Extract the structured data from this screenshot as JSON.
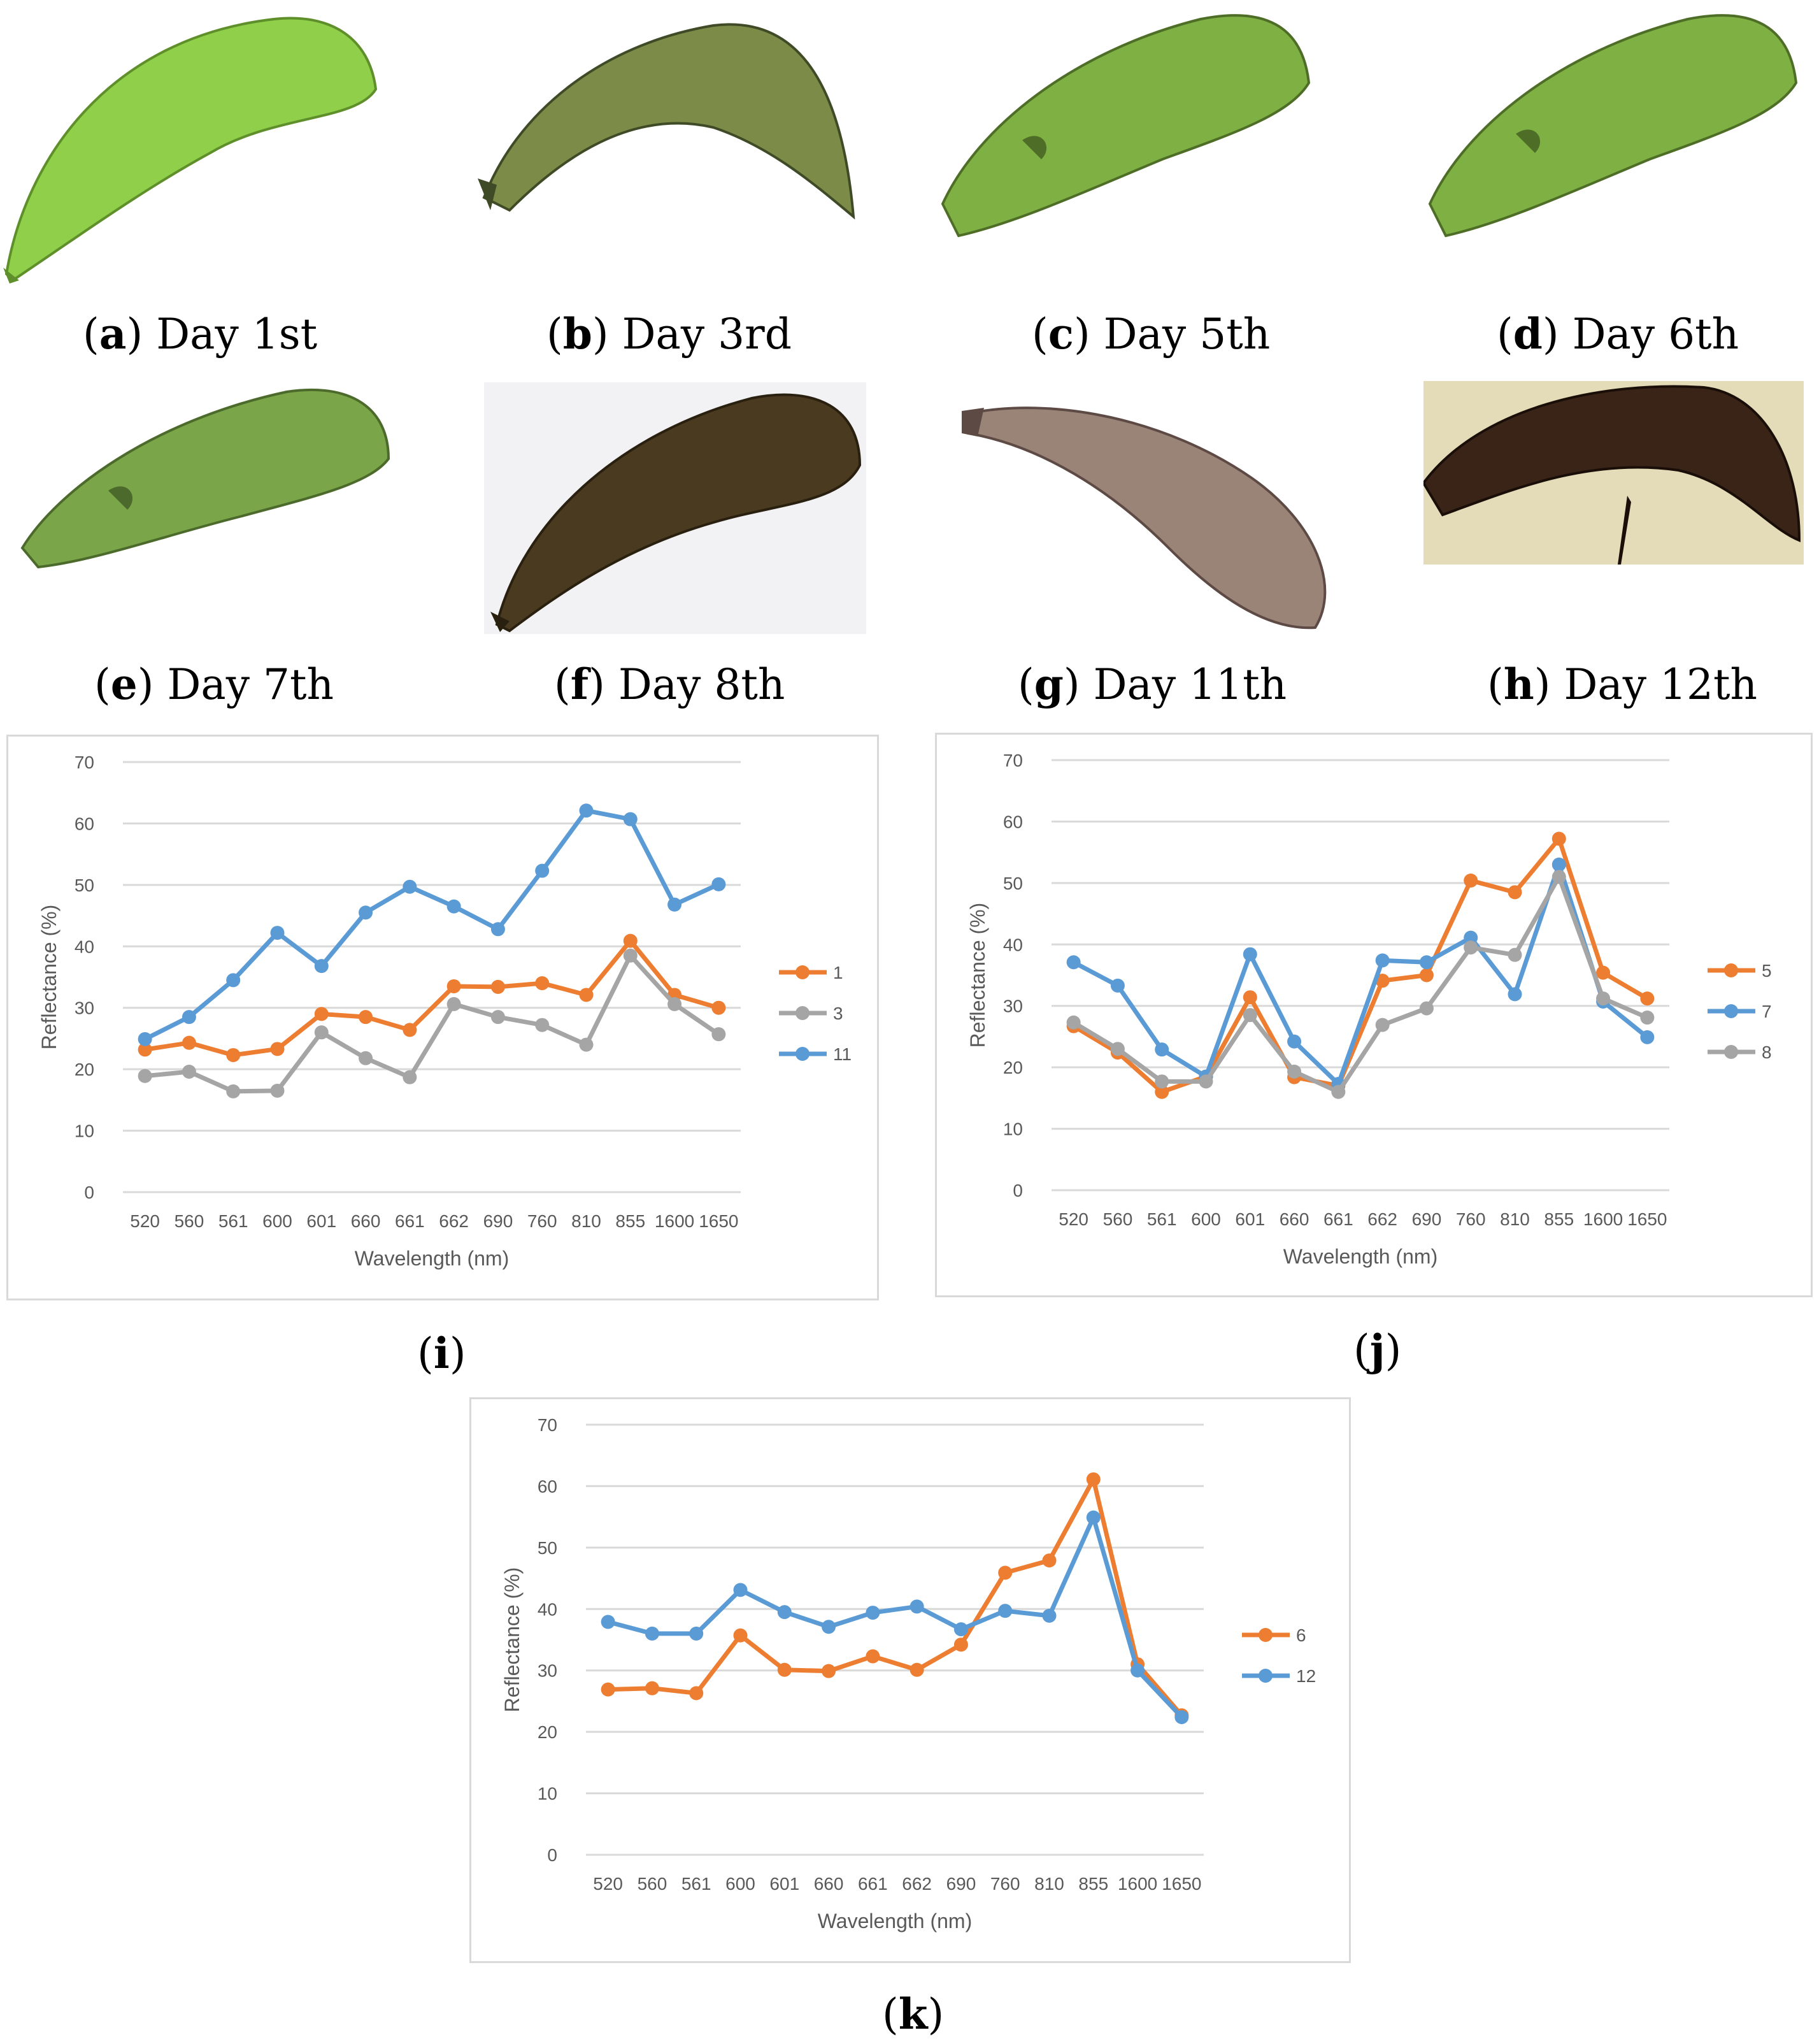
{
  "photos": [
    {
      "letter": "a",
      "label": "Day 1st",
      "skin": "#8fcf4a",
      "edge": "#5f8f2a",
      "bg": "#ffffff"
    },
    {
      "letter": "b",
      "label": "Day 3rd",
      "skin": "#7c8c48",
      "edge": "#3f4a26",
      "bg": "#ffffff"
    },
    {
      "letter": "c",
      "label": "Day 5th",
      "skin": "#7fb043",
      "edge": "#4e6e27",
      "bg": "#ffffff"
    },
    {
      "letter": "d",
      "label": "Day 6th",
      "skin": "#7fb043",
      "edge": "#4e6e27",
      "bg": "#ffffff"
    },
    {
      "letter": "e",
      "label": "Day 7th",
      "skin": "#7aa548",
      "edge": "#4c6a2b",
      "bg": "#ffffff"
    },
    {
      "letter": "f",
      "label": "Day 8th",
      "skin": "#4a3a20",
      "edge": "#2a2010",
      "bg": "#f2f2f4"
    },
    {
      "letter": "g",
      "label": "Day 11th",
      "skin": "#9a8478",
      "edge": "#5d4a44",
      "bg": "#ffffff"
    },
    {
      "letter": "h",
      "label": "Day 12th",
      "skin": "#3a2418",
      "edge": "#1a0f08",
      "bg": "#e4dcb8"
    }
  ],
  "colors": {
    "orange": "#ed7d31",
    "gray": "#a5a5a5",
    "blue": "#5b9bd5",
    "grid": "#d9d9d9",
    "axis_text": "#595959"
  },
  "chart_data": [
    {
      "id": "i",
      "panel_label": "i",
      "type": "line",
      "categories": [
        "520",
        "560",
        "561",
        "600",
        "601",
        "660",
        "661",
        "662",
        "690",
        "760",
        "810",
        "855",
        "1600",
        "1650"
      ],
      "xlabel": "Wavelength (nm)",
      "ylabel": "Reflectance (%)",
      "ylim": [
        0,
        70
      ],
      "yticks": [
        0,
        10,
        20,
        30,
        40,
        50,
        60,
        70
      ],
      "grid": true,
      "legend_position": "right",
      "series": [
        {
          "name": "1",
          "color": "orange",
          "values": [
            23.2,
            24.3,
            22.3,
            23.3,
            29.0,
            28.5,
            26.4,
            33.5,
            33.4,
            34.0,
            32.1,
            40.9,
            32.1,
            30.0
          ]
        },
        {
          "name": "3",
          "color": "gray",
          "values": [
            18.9,
            19.6,
            16.4,
            16.5,
            26.0,
            21.8,
            18.7,
            30.6,
            28.5,
            27.2,
            24.0,
            38.5,
            30.6,
            25.7
          ]
        },
        {
          "name": "11",
          "color": "blue",
          "values": [
            24.9,
            28.5,
            34.5,
            42.2,
            36.8,
            45.5,
            49.7,
            46.5,
            42.8,
            52.3,
            62.1,
            60.7,
            46.8,
            50.1
          ]
        }
      ]
    },
    {
      "id": "j",
      "panel_label": "j",
      "type": "line",
      "categories": [
        "520",
        "560",
        "561",
        "600",
        "601",
        "660",
        "661",
        "662",
        "690",
        "760",
        "810",
        "855",
        "1600",
        "1650"
      ],
      "xlabel": "Wavelength (nm)",
      "ylabel": "Reflectance (%)",
      "ylim": [
        0,
        70
      ],
      "yticks": [
        0,
        10,
        20,
        30,
        40,
        50,
        60,
        70
      ],
      "grid": true,
      "legend_position": "right",
      "series": [
        {
          "name": "5",
          "color": "orange",
          "values": [
            26.7,
            22.4,
            16.0,
            18.5,
            31.4,
            18.4,
            17.0,
            34.1,
            35.0,
            50.4,
            48.5,
            57.2,
            35.4,
            31.2
          ]
        },
        {
          "name": "7",
          "color": "blue",
          "values": [
            37.1,
            33.3,
            22.9,
            18.5,
            38.4,
            24.2,
            17.3,
            37.4,
            37.1,
            41.1,
            31.9,
            53.0,
            30.7,
            24.9
          ]
        },
        {
          "name": "8",
          "color": "gray",
          "values": [
            27.3,
            23.0,
            17.7,
            17.7,
            28.5,
            19.3,
            16.0,
            26.9,
            29.6,
            39.5,
            38.3,
            51.0,
            31.2,
            28.1
          ]
        }
      ]
    },
    {
      "id": "k",
      "panel_label": "k",
      "type": "line",
      "categories": [
        "520",
        "560",
        "561",
        "600",
        "601",
        "660",
        "661",
        "662",
        "690",
        "760",
        "810",
        "855",
        "1600",
        "1650"
      ],
      "xlabel": "Wavelength (nm)",
      "ylabel": "Reflectance (%)",
      "ylim": [
        0,
        70
      ],
      "yticks": [
        0,
        10,
        20,
        30,
        40,
        50,
        60,
        70
      ],
      "grid": true,
      "legend_position": "right",
      "series": [
        {
          "name": "6",
          "color": "orange",
          "values": [
            26.9,
            27.1,
            26.3,
            35.7,
            30.1,
            29.9,
            32.3,
            30.1,
            34.2,
            45.9,
            47.9,
            61.1,
            31.0,
            22.7
          ]
        },
        {
          "name": "12",
          "color": "blue",
          "values": [
            37.9,
            36.0,
            36.0,
            43.1,
            39.5,
            37.1,
            39.4,
            40.4,
            36.7,
            39.7,
            38.9,
            54.9,
            30.0,
            22.4
          ]
        }
      ]
    }
  ]
}
